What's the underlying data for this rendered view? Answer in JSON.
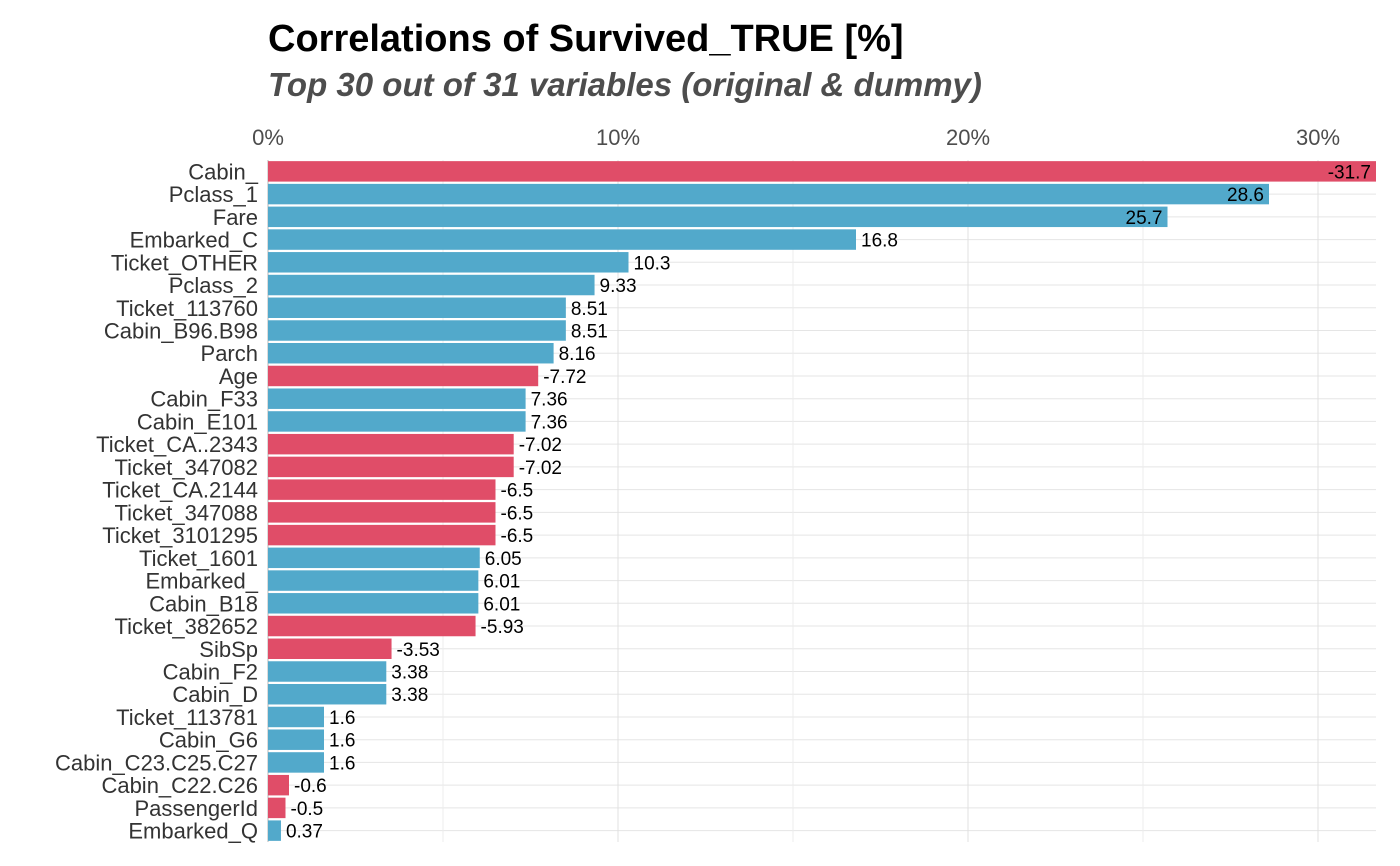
{
  "chart_data": {
    "type": "bar",
    "orientation": "horizontal",
    "title": "Correlations of Survived_TRUE [%]",
    "subtitle": "Top 30 out of 31 variables (original & dummy)",
    "xlabel": "",
    "ylabel": "",
    "xlim": [
      0,
      31.7
    ],
    "x_ticks": [
      0,
      10,
      20,
      30
    ],
    "x_tick_labels": [
      "0%",
      "10%",
      "20%",
      "30%"
    ],
    "grid": true,
    "legend": "none",
    "colors": {
      "positive": "#52a9cb",
      "negative": "#e04d68"
    },
    "categories": [
      "Cabin_",
      "Pclass_1",
      "Fare",
      "Embarked_C",
      "Ticket_OTHER",
      "Pclass_2",
      "Ticket_113760",
      "Cabin_B96.B98",
      "Parch",
      "Age",
      "Cabin_F33",
      "Cabin_E101",
      "Ticket_CA..2343",
      "Ticket_347082",
      "Ticket_CA.2144",
      "Ticket_347088",
      "Ticket_3101295",
      "Ticket_1601",
      "Embarked_",
      "Cabin_B18",
      "Ticket_382652",
      "SibSp",
      "Cabin_F2",
      "Cabin_D",
      "Ticket_113781",
      "Cabin_G6",
      "Cabin_C23.C25.C27",
      "Cabin_C22.C26",
      "PassengerId",
      "Embarked_Q"
    ],
    "values": [
      -31.7,
      28.6,
      25.7,
      16.8,
      10.3,
      9.33,
      8.51,
      8.51,
      8.16,
      -7.72,
      7.36,
      7.36,
      -7.02,
      -7.02,
      -6.5,
      -6.5,
      -6.5,
      6.05,
      6.01,
      6.01,
      -5.93,
      -3.53,
      3.38,
      3.38,
      1.6,
      1.6,
      1.6,
      -0.6,
      -0.5,
      0.37
    ],
    "value_labels": [
      "-31.7",
      "28.6",
      "25.7",
      "16.8",
      "10.3",
      "9.33",
      "8.51",
      "8.51",
      "8.16",
      "-7.72",
      "7.36",
      "7.36",
      "-7.02",
      "-7.02",
      "-6.5",
      "-6.5",
      "-6.5",
      "6.05",
      "6.01",
      "6.01",
      "-5.93",
      "-3.53",
      "3.38",
      "3.38",
      "1.6",
      "1.6",
      "1.6",
      "-0.6",
      "-0.5",
      "0.37"
    ]
  }
}
